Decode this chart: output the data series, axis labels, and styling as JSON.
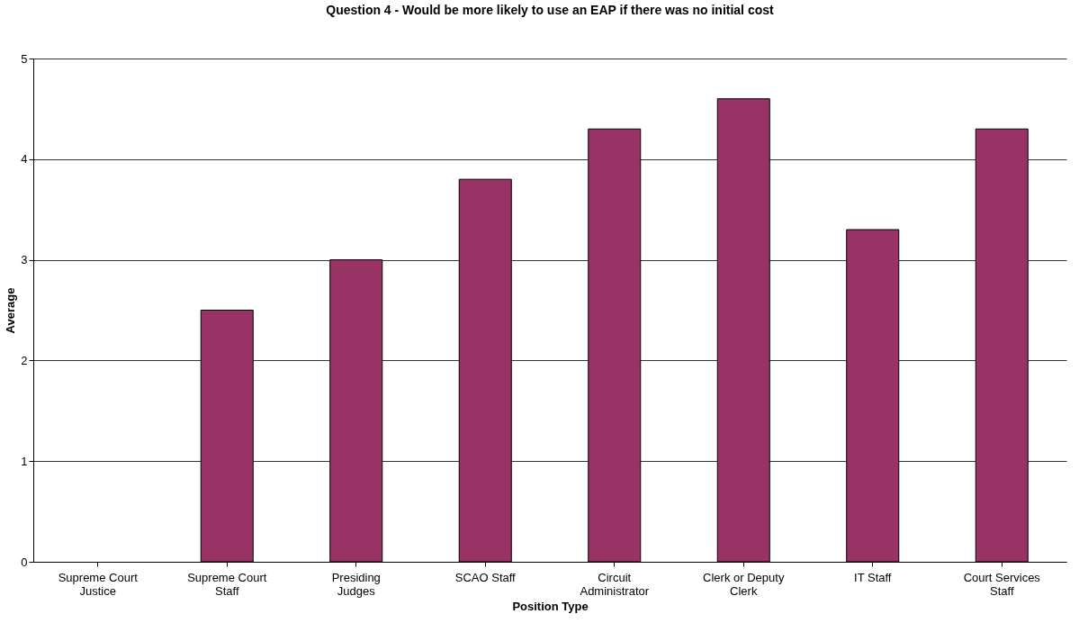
{
  "chart_data": {
    "type": "bar",
    "title": "Question 4 - Would be more likely to use an EAP if there was no initial cost",
    "xlabel": "Position Type",
    "ylabel": "Average",
    "categories": [
      "Supreme Court Justice",
      "Supreme Court Staff",
      "Presiding Judges",
      "SCAO Staff",
      "Circuit Administrator",
      "Clerk or Deputy Clerk",
      "IT Staff",
      "Court Services Staff"
    ],
    "values": [
      null,
      2.5,
      3.0,
      3.8,
      4.3,
      4.6,
      3.3,
      4.3
    ],
    "color": "#993366",
    "ylim": [
      0,
      5
    ],
    "yticks": [
      0,
      1,
      2,
      3,
      4,
      5
    ],
    "grid": "y"
  }
}
